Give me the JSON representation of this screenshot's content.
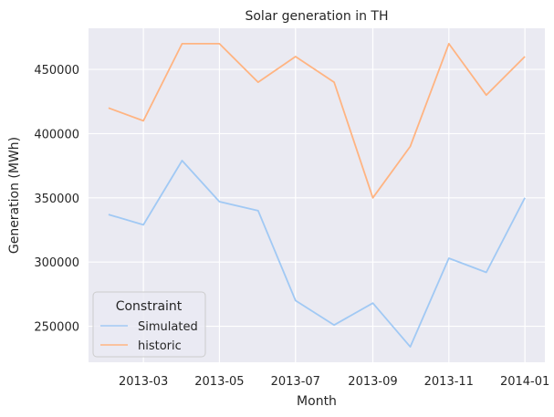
{
  "chart_data": {
    "type": "line",
    "title": "Solar generation in TH",
    "xlabel": "Month",
    "ylabel": "Generation (MWh)",
    "x": [
      "2013-02-01",
      "2013-03-01",
      "2013-04-01",
      "2013-05-01",
      "2013-06-01",
      "2013-07-01",
      "2013-08-01",
      "2013-09-01",
      "2013-10-01",
      "2013-11-01",
      "2013-12-01",
      "2014-01-01"
    ],
    "x_ticks": [
      "2013-03",
      "2013-05",
      "2013-07",
      "2013-09",
      "2013-11",
      "2014-01"
    ],
    "y_ticks": [
      250000,
      300000,
      350000,
      400000,
      450000
    ],
    "xlim": [
      "2013-01-16",
      "2014-01-17"
    ],
    "ylim": [
      222000,
      482000
    ],
    "grid": true,
    "legend": {
      "title": "Constraint",
      "placement": "lower-left"
    },
    "series": [
      {
        "name": "Simulated",
        "color": "#a1c9f4",
        "values": [
          337000,
          329000,
          379000,
          347000,
          340000,
          270000,
          251000,
          268000,
          234000,
          303000,
          292000,
          350000
        ]
      },
      {
        "name": "historic",
        "color": "#ffb482",
        "values": [
          420000,
          410000,
          470000,
          470000,
          440000,
          460000,
          440000,
          350000,
          390000,
          470000,
          430000,
          460000
        ]
      }
    ],
    "colors": {
      "plot_background": "#eaeaf2",
      "grid": "#ffffff"
    }
  }
}
